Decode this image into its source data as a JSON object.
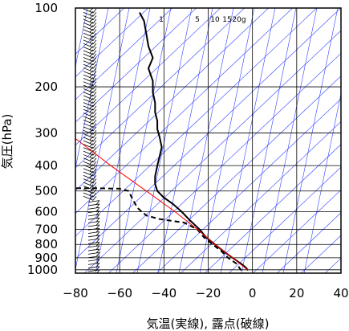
{
  "chart_data": {
    "type": "line",
    "title": "",
    "xlabel": "気温(実線), 露点(破線)",
    "ylabel": "気圧(hPa)",
    "xlim": [
      -80,
      40
    ],
    "ylim": [
      1030,
      100
    ],
    "y_scale": "log",
    "grid": true,
    "x_ticks": [
      -80,
      -60,
      -40,
      -20,
      0,
      20,
      40
    ],
    "y_ticks": [
      100,
      200,
      300,
      400,
      500,
      600,
      700,
      800,
      900,
      1000
    ],
    "mixing_ratio_labels": [
      "1",
      "5",
      "10",
      "15",
      "20g"
    ],
    "colors": {
      "temperature": "#000000",
      "dewpoint": "#000000",
      "lifted_parcel": "#ff0000",
      "background_lines": "#3040ff",
      "grid": "#000000"
    },
    "series": [
      {
        "style": "solid",
        "points": [
          {
            "p": 1005,
            "t": -2
          },
          {
            "p": 980,
            "t": -3
          },
          {
            "p": 950,
            "t": -5
          },
          {
            "p": 925,
            "t": -7
          },
          {
            "p": 900,
            "t": -9
          },
          {
            "p": 850,
            "t": -13
          },
          {
            "p": 800,
            "t": -17
          },
          {
            "p": 750,
            "t": -21
          },
          {
            "p": 700,
            "t": -24
          },
          {
            "p": 650,
            "t": -28
          },
          {
            "p": 600,
            "t": -32
          },
          {
            "p": 560,
            "t": -36
          },
          {
            "p": 530,
            "t": -40
          },
          {
            "p": 500,
            "t": -43
          },
          {
            "p": 470,
            "t": -44
          },
          {
            "p": 440,
            "t": -44
          },
          {
            "p": 400,
            "t": -43
          },
          {
            "p": 370,
            "t": -42
          },
          {
            "p": 340,
            "t": -41
          },
          {
            "p": 310,
            "t": -42
          },
          {
            "p": 290,
            "t": -43
          },
          {
            "p": 270,
            "t": -43
          },
          {
            "p": 250,
            "t": -44
          },
          {
            "p": 230,
            "t": -44
          },
          {
            "p": 210,
            "t": -45
          },
          {
            "p": 190,
            "t": -45
          },
          {
            "p": 170,
            "t": -47
          },
          {
            "p": 155,
            "t": -45
          },
          {
            "p": 140,
            "t": -47
          },
          {
            "p": 125,
            "t": -48
          },
          {
            "p": 112,
            "t": -49
          },
          {
            "p": 104,
            "t": -51
          }
        ]
      },
      {
        "style": "dashed",
        "points": [
          {
            "p": 1005,
            "t": -5
          },
          {
            "p": 980,
            "t": -6
          },
          {
            "p": 950,
            "t": -7
          },
          {
            "p": 925,
            "t": -9
          },
          {
            "p": 900,
            "t": -11
          },
          {
            "p": 850,
            "t": -14
          },
          {
            "p": 800,
            "t": -18
          },
          {
            "p": 750,
            "t": -22
          },
          {
            "p": 700,
            "t": -25
          },
          {
            "p": 660,
            "t": -31
          },
          {
            "p": 640,
            "t": -42
          },
          {
            "p": 620,
            "t": -48
          },
          {
            "p": 580,
            "t": -52
          },
          {
            "p": 540,
            "t": -54
          },
          {
            "p": 500,
            "t": -56
          },
          {
            "p": 490,
            "t": -60
          },
          {
            "p": 488,
            "t": -70
          },
          {
            "p": 488,
            "t": -80
          }
        ]
      },
      {
        "style": "solid",
        "color": "red",
        "points": [
          {
            "p": 1005,
            "t": -2
          },
          {
            "p": 900,
            "t": -9
          },
          {
            "p": 800,
            "t": -17
          },
          {
            "p": 700,
            "t": -25
          },
          {
            "p": 600,
            "t": -35
          },
          {
            "p": 500,
            "t": -48
          },
          {
            "p": 400,
            "t": -64
          },
          {
            "p": 315,
            "t": -80
          }
        ]
      }
    ],
    "wind_barbs_count": 76
  }
}
